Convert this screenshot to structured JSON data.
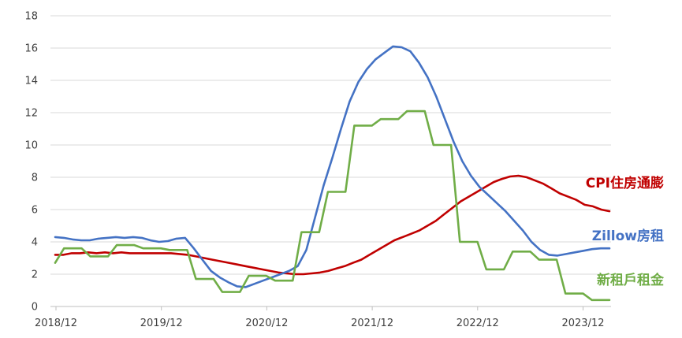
{
  "chart_data": {
    "type": "line",
    "title": "",
    "xlabel": "",
    "ylabel": "",
    "ylim": [
      0,
      18
    ],
    "yticks": [
      0,
      2,
      4,
      6,
      8,
      10,
      12,
      14,
      16,
      18
    ],
    "x_tick_labels": [
      "2018/12",
      "2019/12",
      "2020/12",
      "2021/12",
      "2022/12",
      "2023/12"
    ],
    "grid": "horizontal",
    "legend": "inline labels at right end of lines",
    "series": [
      {
        "name": "CPI住房通膨",
        "color": "#c00000",
        "values": [
          3.2,
          3.2,
          3.3,
          3.3,
          3.35,
          3.3,
          3.35,
          3.3,
          3.35,
          3.3,
          3.3,
          3.3,
          3.3,
          3.3,
          3.3,
          3.25,
          3.2,
          3.1,
          3.0,
          2.9,
          2.8,
          2.7,
          2.6,
          2.5,
          2.4,
          2.3,
          2.2,
          2.1,
          2.05,
          2.0,
          2.0,
          2.05,
          2.1,
          2.2,
          2.35,
          2.5,
          2.7,
          2.9,
          3.2,
          3.5,
          3.8,
          4.1,
          4.3,
          4.5,
          4.7,
          5.0,
          5.3,
          5.7,
          6.1,
          6.5,
          6.8,
          7.1,
          7.4,
          7.7,
          7.9,
          8.05,
          8.1,
          8.0,
          7.8,
          7.6,
          7.3,
          7.0,
          6.8,
          6.6,
          6.3,
          6.2,
          6.0,
          5.9
        ]
      },
      {
        "name": "Zillow房租",
        "color": "#4472c4",
        "values": [
          4.3,
          4.25,
          4.15,
          4.1,
          4.1,
          4.2,
          4.25,
          4.3,
          4.25,
          4.3,
          4.25,
          4.1,
          4.0,
          4.05,
          4.2,
          4.25,
          3.6,
          2.9,
          2.2,
          1.8,
          1.5,
          1.25,
          1.2,
          1.4,
          1.6,
          1.8,
          2.0,
          2.2,
          2.5,
          3.5,
          5.5,
          7.5,
          9.2,
          11.0,
          12.7,
          13.9,
          14.7,
          15.3,
          15.7,
          16.1,
          16.05,
          15.8,
          15.1,
          14.2,
          13.0,
          11.6,
          10.2,
          9.0,
          8.1,
          7.4,
          6.9,
          6.4,
          5.9,
          5.3,
          4.7,
          4.0,
          3.5,
          3.2,
          3.15,
          3.25,
          3.35,
          3.45,
          3.55,
          3.6,
          3.6
        ]
      },
      {
        "name": "新租戶租金",
        "color": "#70ad47",
        "values": [
          2.7,
          3.6,
          3.6,
          3.6,
          3.1,
          3.1,
          3.1,
          3.8,
          3.8,
          3.8,
          3.6,
          3.6,
          3.6,
          3.5,
          3.5,
          3.5,
          1.7,
          1.7,
          1.7,
          0.9,
          0.9,
          0.9,
          1.9,
          1.9,
          1.9,
          1.6,
          1.6,
          1.6,
          4.6,
          4.6,
          4.6,
          7.1,
          7.1,
          7.1,
          11.2,
          11.2,
          11.2,
          11.6,
          11.6,
          11.6,
          12.1,
          12.1,
          12.1,
          10.0,
          10.0,
          10.0,
          4.0,
          4.0,
          4.0,
          2.3,
          2.3,
          2.3,
          3.4,
          3.4,
          3.4,
          2.9,
          2.9,
          2.9,
          0.8,
          0.8,
          0.8,
          0.4,
          0.4,
          0.4
        ]
      }
    ]
  }
}
